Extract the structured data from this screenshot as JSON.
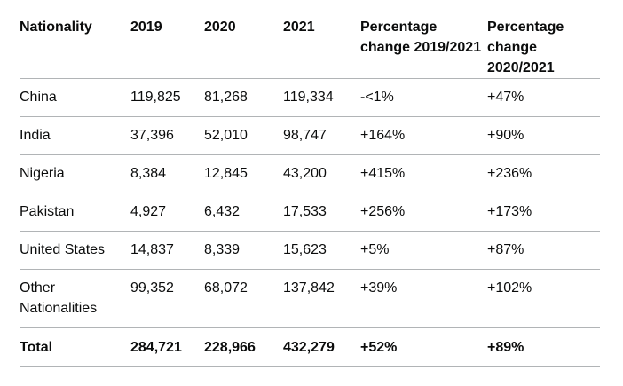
{
  "table": {
    "headers": {
      "nationality": "Nationality",
      "y2019": "2019",
      "y2020": "2020",
      "y2021": "2021",
      "pct_2019_2021": "Percentage change 2019/2021",
      "pct_2020_2021": "Percentage change 2020/2021"
    },
    "rows": [
      {
        "nationality": "China",
        "y2019": "119,825",
        "y2020": "81,268",
        "y2021": "119,334",
        "pct_2019_2021": "-<1%",
        "pct_2020_2021": "+47%"
      },
      {
        "nationality": "India",
        "y2019": "37,396",
        "y2020": "52,010",
        "y2021": "98,747",
        "pct_2019_2021": "+164%",
        "pct_2020_2021": "+90%"
      },
      {
        "nationality": "Nigeria",
        "y2019": "8,384",
        "y2020": "12,845",
        "y2021": "43,200",
        "pct_2019_2021": "+415%",
        "pct_2020_2021": "+236%"
      },
      {
        "nationality": "Pakistan",
        "y2019": "4,927",
        "y2020": "6,432",
        "y2021": "17,533",
        "pct_2019_2021": "+256%",
        "pct_2020_2021": "+173%"
      },
      {
        "nationality": "United States",
        "y2019": "14,837",
        "y2020": "8,339",
        "y2021": "15,623",
        "pct_2019_2021": "+5%",
        "pct_2020_2021": "+87%"
      },
      {
        "nationality": "Other Nationalities",
        "y2019": "99,352",
        "y2020": "68,072",
        "y2021": "137,842",
        "pct_2019_2021": "+39%",
        "pct_2020_2021": "+102%"
      }
    ],
    "total": {
      "nationality": "Total",
      "y2019": "284,721",
      "y2020": "228,966",
      "y2021": "432,279",
      "pct_2019_2021": "+52%",
      "pct_2020_2021": "+89%"
    }
  }
}
